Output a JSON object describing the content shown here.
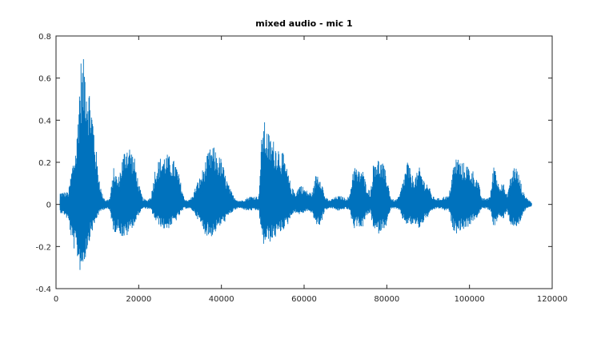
{
  "chart_data": {
    "type": "line",
    "title": "mixed audio - mic 1",
    "xlabel": "",
    "ylabel": "",
    "xlim": [
      0,
      120000
    ],
    "ylim": [
      -0.4,
      0.8
    ],
    "xticks": [
      0,
      20000,
      40000,
      60000,
      80000,
      100000,
      120000
    ],
    "xtick_labels": [
      "0",
      "20000",
      "40000",
      "60000",
      "80000",
      "100000",
      "120000"
    ],
    "yticks": [
      -0.4,
      -0.2,
      0,
      0.2,
      0.4,
      0.6,
      0.8
    ],
    "ytick_labels": [
      "-0.4",
      "-0.2",
      "0",
      "0.2",
      "0.4",
      "0.6",
      "0.8"
    ],
    "grid": false,
    "legend": "none",
    "line_color": "#0072bd",
    "series": [
      {
        "name": "",
        "envelope": {
          "x": [
            0,
            1000,
            2000,
            3000,
            4000,
            5000,
            5500,
            6000,
            6500,
            7000,
            7500,
            8000,
            8500,
            9000,
            10000,
            11000,
            12000,
            13000,
            14000,
            15000,
            16000,
            17000,
            18000,
            19000,
            20000,
            21000,
            22000,
            23000,
            24000,
            25000,
            26000,
            27000,
            28000,
            29000,
            30000,
            31000,
            32000,
            33000,
            34000,
            35000,
            36000,
            37000,
            38000,
            39000,
            40000,
            41000,
            42000,
            43000,
            44000,
            45000,
            46000,
            47000,
            48000,
            49000,
            50000,
            51000,
            52000,
            53000,
            54000,
            55000,
            56000,
            57000,
            58000,
            59000,
            60000,
            61000,
            62000,
            63000,
            64000,
            65000,
            66000,
            67000,
            68000,
            69000,
            70000,
            71000,
            72000,
            73000,
            74000,
            75000,
            76000,
            77000,
            78000,
            79000,
            80000,
            81000,
            82000,
            83000,
            84000,
            85000,
            86000,
            87000,
            88000,
            89000,
            90000,
            91000,
            92000,
            93000,
            94000,
            95000,
            96000,
            97000,
            98000,
            99000,
            100000,
            101000,
            102000,
            103000,
            104000,
            105000,
            106000,
            107000,
            108000,
            109000,
            110000,
            111000,
            112000,
            113000,
            114000,
            115000,
            116000,
            117000,
            118000,
            119000
          ],
          "max": [
            0.04,
            0.06,
            0.06,
            0.06,
            0.2,
            0.3,
            0.55,
            0.7,
            0.68,
            0.72,
            0.62,
            0.58,
            0.5,
            0.42,
            0.2,
            0.06,
            0.02,
            0.03,
            0.18,
            0.12,
            0.22,
            0.3,
            0.28,
            0.22,
            0.1,
            0.03,
            0.02,
            0.04,
            0.18,
            0.22,
            0.24,
            0.24,
            0.22,
            0.2,
            0.12,
            0.03,
            0.02,
            0.04,
            0.1,
            0.14,
            0.2,
            0.26,
            0.28,
            0.24,
            0.22,
            0.14,
            0.08,
            0.04,
            0.02,
            0.02,
            0.03,
            0.04,
            0.04,
            0.04,
            0.42,
            0.36,
            0.32,
            0.3,
            0.28,
            0.24,
            0.16,
            0.08,
            0.06,
            0.1,
            0.08,
            0.06,
            0.06,
            0.16,
            0.14,
            0.04,
            0.02,
            0.03,
            0.04,
            0.04,
            0.03,
            0.04,
            0.2,
            0.16,
            0.18,
            0.1,
            0.06,
            0.24,
            0.22,
            0.2,
            0.14,
            0.03,
            0.02,
            0.04,
            0.12,
            0.22,
            0.14,
            0.14,
            0.18,
            0.12,
            0.1,
            0.04,
            0.03,
            0.03,
            0.04,
            0.04,
            0.18,
            0.24,
            0.2,
            0.2,
            0.18,
            0.16,
            0.12,
            0.03,
            0.03,
            0.04,
            0.22,
            0.1,
            0.12,
            0.04,
            0.14,
            0.2,
            0.14,
            0.06,
            0.03,
            0.01
          ],
          "min": [
            -0.03,
            -0.04,
            -0.05,
            -0.08,
            -0.2,
            -0.24,
            -0.3,
            -0.33,
            -0.3,
            -0.27,
            -0.22,
            -0.18,
            -0.14,
            -0.12,
            -0.06,
            -0.03,
            -0.02,
            -0.03,
            -0.14,
            -0.12,
            -0.16,
            -0.16,
            -0.12,
            -0.1,
            -0.05,
            -0.02,
            -0.02,
            -0.03,
            -0.08,
            -0.1,
            -0.12,
            -0.12,
            -0.1,
            -0.08,
            -0.05,
            -0.02,
            -0.02,
            -0.03,
            -0.06,
            -0.1,
            -0.14,
            -0.16,
            -0.15,
            -0.12,
            -0.1,
            -0.08,
            -0.05,
            -0.03,
            -0.02,
            -0.02,
            -0.03,
            -0.03,
            -0.03,
            -0.03,
            -0.2,
            -0.18,
            -0.18,
            -0.16,
            -0.14,
            -0.12,
            -0.1,
            -0.05,
            -0.04,
            -0.05,
            -0.04,
            -0.03,
            -0.05,
            -0.1,
            -0.1,
            -0.03,
            -0.02,
            -0.02,
            -0.03,
            -0.03,
            -0.02,
            -0.03,
            -0.12,
            -0.1,
            -0.12,
            -0.06,
            -0.04,
            -0.14,
            -0.14,
            -0.12,
            -0.1,
            -0.02,
            -0.02,
            -0.03,
            -0.08,
            -0.1,
            -0.1,
            -0.1,
            -0.12,
            -0.08,
            -0.06,
            -0.03,
            -0.02,
            -0.02,
            -0.03,
            -0.03,
            -0.12,
            -0.14,
            -0.12,
            -0.12,
            -0.1,
            -0.08,
            -0.06,
            -0.02,
            -0.02,
            -0.03,
            -0.12,
            -0.06,
            -0.08,
            -0.03,
            -0.1,
            -0.12,
            -0.1,
            -0.04,
            -0.02,
            -0.01
          ]
        }
      }
    ]
  }
}
